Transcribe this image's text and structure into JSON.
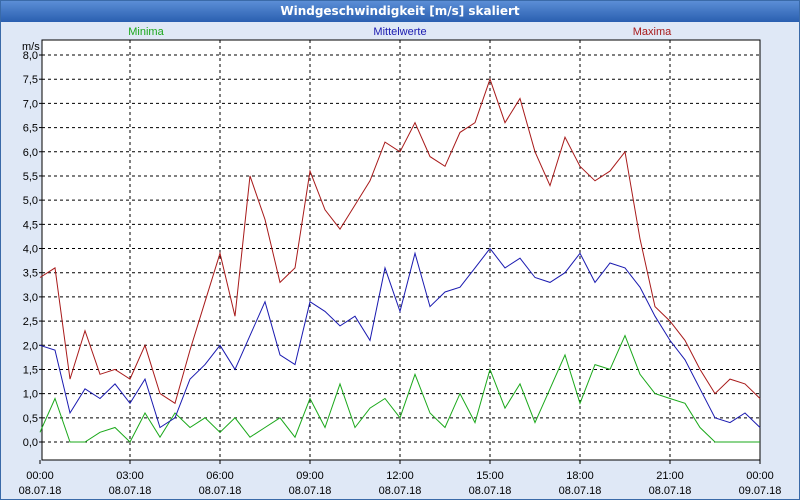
{
  "window": {
    "title": "Windgeschwindigkeit [m/s] skaliert"
  },
  "chart_data": {
    "type": "line",
    "title": "Windgeschwindigkeit [m/s] skaliert",
    "ylabel": "m/s",
    "ylim": [
      0,
      8
    ],
    "xlim_hours": [
      0,
      24
    ],
    "y_ticks": [
      "0,0",
      "0,5",
      "1,0",
      "1,5",
      "2,0",
      "2,5",
      "3,0",
      "3,5",
      "4,0",
      "4,5",
      "5,0",
      "5,5",
      "6,0",
      "6,5",
      "7,0",
      "7,5",
      "8,0"
    ],
    "x_ticks": [
      {
        "hour": 0,
        "time": "00:00",
        "date": "08.07.18"
      },
      {
        "hour": 3,
        "time": "03:00",
        "date": "08.07.18"
      },
      {
        "hour": 6,
        "time": "06:00",
        "date": "08.07.18"
      },
      {
        "hour": 9,
        "time": "09:00",
        "date": "08.07.18"
      },
      {
        "hour": 12,
        "time": "12:00",
        "date": "08.07.18"
      },
      {
        "hour": 15,
        "time": "15:00",
        "date": "08.07.18"
      },
      {
        "hour": 18,
        "time": "18:00",
        "date": "08.07.18"
      },
      {
        "hour": 21,
        "time": "21:00",
        "date": "08.07.18"
      },
      {
        "hour": 24,
        "time": "00:00",
        "date": "09.07.18"
      }
    ],
    "series": [
      {
        "name": "Minima",
        "color": "#1aa81a",
        "hours": [
          0,
          0.5,
          1,
          1.5,
          2,
          2.5,
          3,
          3.5,
          4,
          4.5,
          5,
          5.5,
          6,
          6.5,
          7,
          7.5,
          8,
          8.5,
          9,
          9.5,
          10,
          10.5,
          11,
          11.5,
          12,
          12.5,
          13,
          13.5,
          14,
          14.5,
          15,
          15.5,
          16,
          16.5,
          17,
          17.5,
          18,
          18.5,
          19,
          19.5,
          20,
          20.5,
          21,
          21.5,
          22,
          22.5,
          23,
          23.5,
          24
        ],
        "values": [
          0.2,
          0.9,
          0,
          0,
          0.2,
          0.3,
          0,
          0.6,
          0.1,
          0.6,
          0.3,
          0.5,
          0.2,
          0.5,
          0.1,
          0.3,
          0.5,
          0.1,
          0.9,
          0.3,
          1.2,
          0.3,
          0.7,
          0.9,
          0.5,
          1.4,
          0.6,
          0.3,
          1.0,
          0.4,
          1.5,
          0.7,
          1.2,
          0.4,
          1.1,
          1.8,
          0.8,
          1.6,
          1.5,
          2.2,
          1.4,
          1.0,
          0.9,
          0.8,
          0.3,
          0,
          0,
          0,
          0
        ]
      },
      {
        "name": "Mittelwerte",
        "color": "#1a1ab0",
        "hours": [
          0,
          0.5,
          1,
          1.5,
          2,
          2.5,
          3,
          3.5,
          4,
          4.5,
          5,
          5.5,
          6,
          6.5,
          7,
          7.5,
          8,
          8.5,
          9,
          9.5,
          10,
          10.5,
          11,
          11.5,
          12,
          12.5,
          13,
          13.5,
          14,
          14.5,
          15,
          15.5,
          16,
          16.5,
          17,
          17.5,
          18,
          18.5,
          19,
          19.5,
          20,
          20.5,
          21,
          21.5,
          22,
          22.5,
          23,
          23.5,
          24
        ],
        "values": [
          2.0,
          1.9,
          0.6,
          1.1,
          0.9,
          1.2,
          0.8,
          1.3,
          0.3,
          0.5,
          1.3,
          1.6,
          2.0,
          1.5,
          2.2,
          2.9,
          1.8,
          1.6,
          2.9,
          2.7,
          2.4,
          2.6,
          2.1,
          3.6,
          2.7,
          3.9,
          2.8,
          3.1,
          3.2,
          3.6,
          4.0,
          3.6,
          3.8,
          3.4,
          3.3,
          3.5,
          3.9,
          3.3,
          3.7,
          3.6,
          3.2,
          2.6,
          2.1,
          1.7,
          1.1,
          0.5,
          0.4,
          0.6,
          0.3
        ]
      },
      {
        "name": "Maxima",
        "color": "#a81a1a",
        "hours": [
          0,
          0.5,
          1,
          1.5,
          2,
          2.5,
          3,
          3.5,
          4,
          4.5,
          5,
          5.5,
          6,
          6.5,
          7,
          7.5,
          8,
          8.5,
          9,
          9.5,
          10,
          10.5,
          11,
          11.5,
          12,
          12.5,
          13,
          13.5,
          14,
          14.5,
          15,
          15.5,
          16,
          16.5,
          17,
          17.5,
          18,
          18.5,
          19,
          19.5,
          20,
          20.5,
          21,
          21.5,
          22,
          22.5,
          23,
          23.5,
          24
        ],
        "values": [
          3.4,
          3.6,
          1.3,
          2.3,
          1.4,
          1.5,
          1.3,
          2.0,
          1.0,
          0.8,
          1.9,
          2.9,
          3.9,
          2.6,
          5.5,
          4.6,
          3.3,
          3.6,
          5.6,
          4.8,
          4.4,
          4.9,
          5.4,
          6.2,
          6.0,
          6.6,
          5.9,
          5.7,
          6.4,
          6.6,
          7.5,
          6.6,
          7.1,
          6.0,
          5.3,
          6.3,
          5.7,
          5.4,
          5.6,
          6.0,
          4.2,
          2.8,
          2.5,
          2.1,
          1.5,
          1.0,
          1.3,
          1.2,
          0.9
        ]
      }
    ]
  }
}
